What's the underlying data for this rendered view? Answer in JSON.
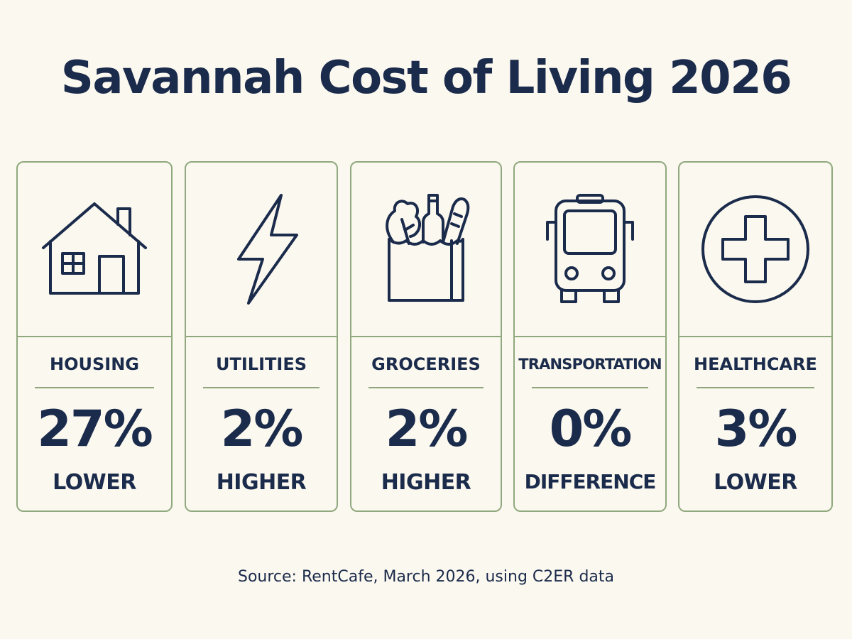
{
  "title": "Savannah Cost of Living 2026",
  "cards": [
    {
      "icon": "house-icon",
      "category": "HOUSING",
      "value": "27%",
      "direction": "LOWER"
    },
    {
      "icon": "lightning-bolt-icon",
      "category": "UTILITIES",
      "value": "2%",
      "direction": "HIGHER"
    },
    {
      "icon": "grocery-bag-icon",
      "category": "GROCERIES",
      "value": "2%",
      "direction": "HIGHER"
    },
    {
      "icon": "bus-icon",
      "category": "TRANSPORTATION",
      "value": "0%",
      "direction": "DIFFERENCE"
    },
    {
      "icon": "medical-cross-icon",
      "category": "HEALTHCARE",
      "value": "3%",
      "direction": "LOWER"
    }
  ],
  "source": "Source: RentCafe, March 2026, using C2ER data",
  "colors": {
    "background": "#fbf8ef",
    "text": "#1b2b4b",
    "border": "#90a87e"
  }
}
